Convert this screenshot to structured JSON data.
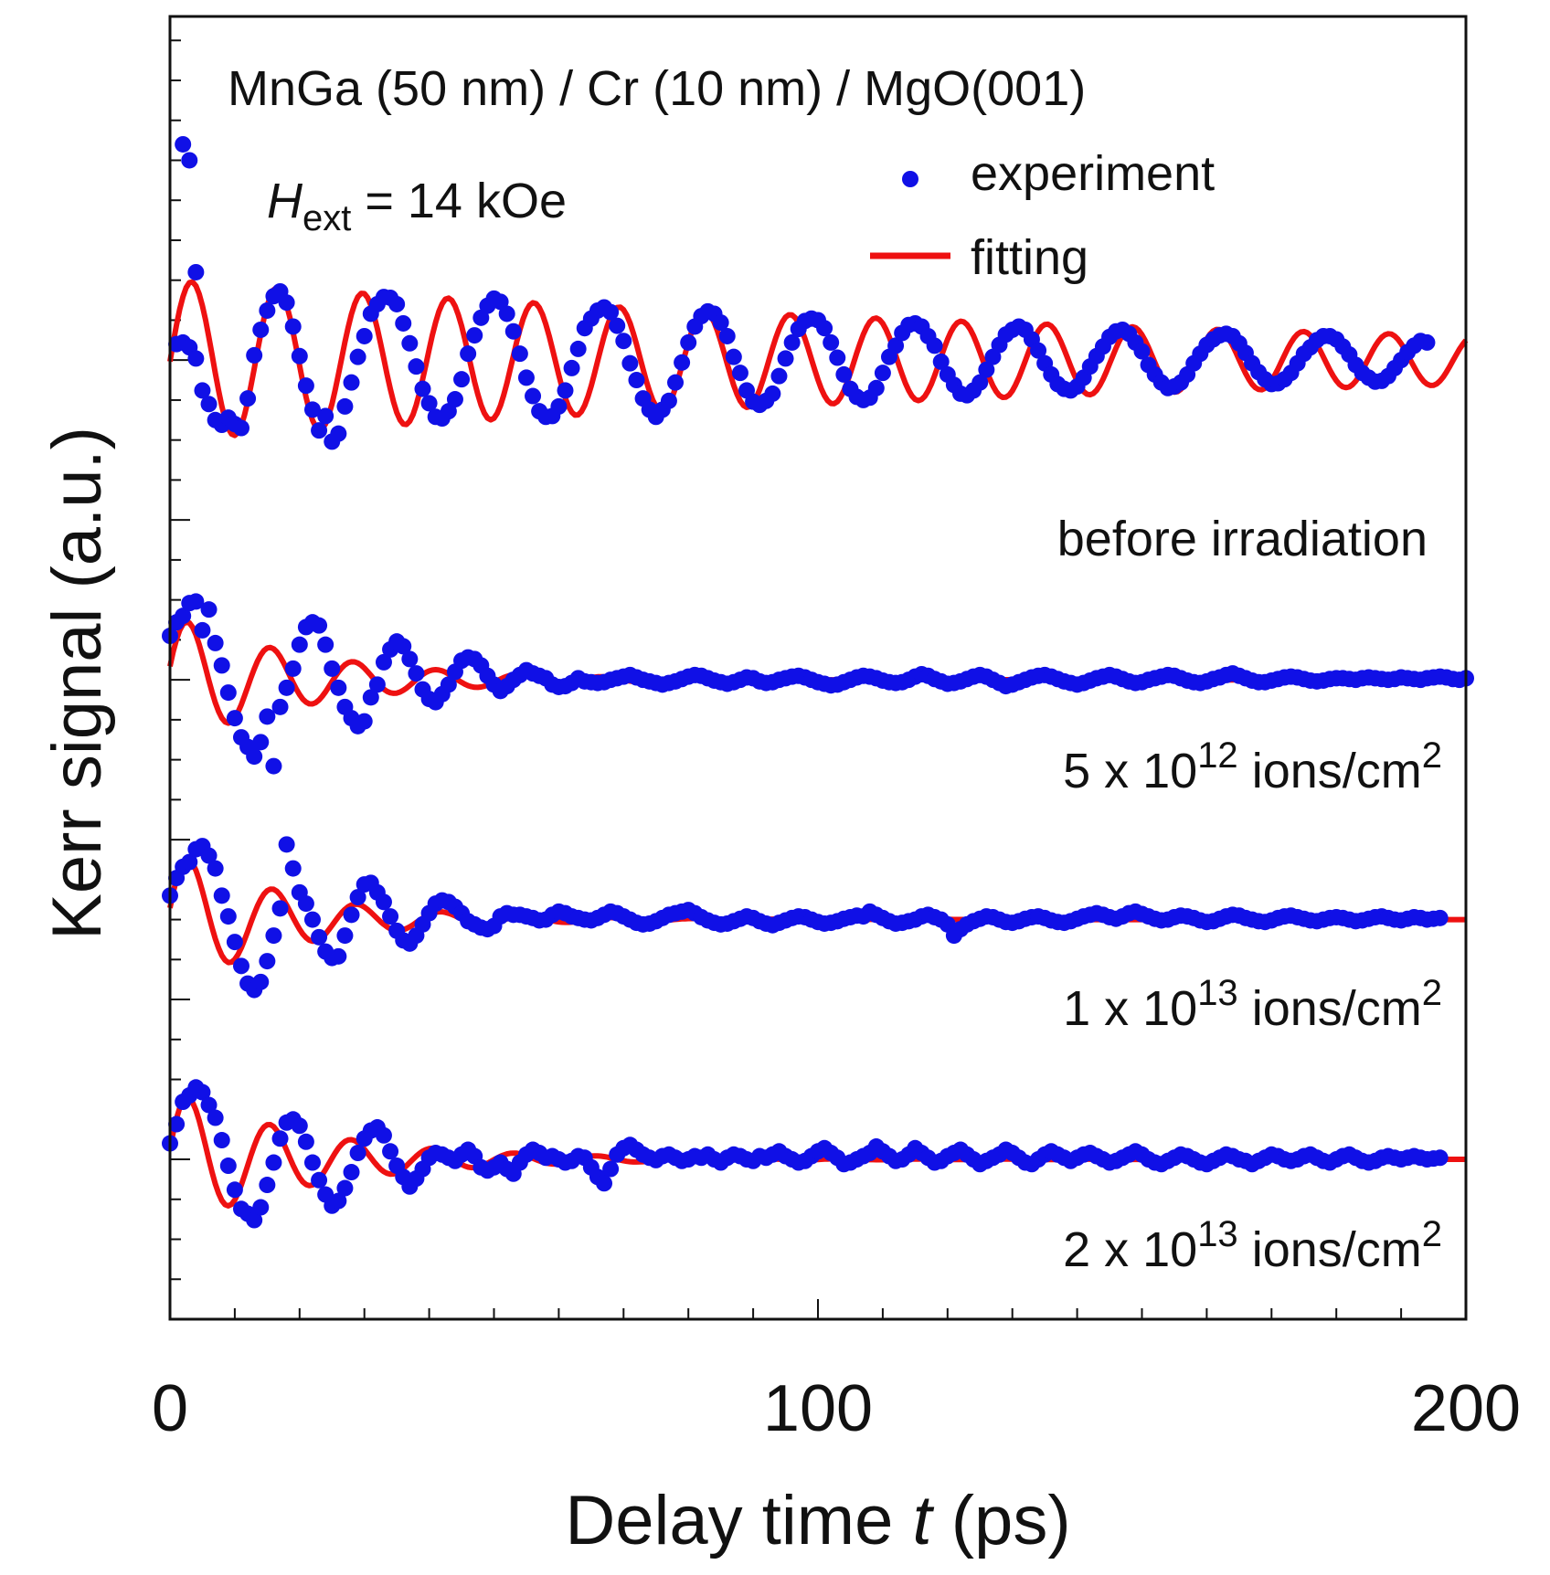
{
  "chart_data": {
    "type": "scatter",
    "title": "MnGa (50 nm) / Cr (10 nm) / MgO(001)",
    "field_label": {
      "symbol": "H",
      "subscript": "ext",
      "value": " = 14 kOe"
    },
    "xlabel": {
      "prefix": "Delay time ",
      "var": "t",
      "suffix": " (ps)"
    },
    "ylabel": "Kerr signal (a.u.)",
    "xlim": [
      0,
      200
    ],
    "ylim": [
      -2.0,
      14.3
    ],
    "x_ticks": [
      0,
      100,
      200
    ],
    "x_tick_labels": [
      "0",
      "100",
      "200"
    ],
    "x_minor_step": 10,
    "y_major_ticks": [
      0,
      2,
      4,
      6,
      8,
      10
    ],
    "y_minor_step": 0.5,
    "legend": {
      "position": "top-right",
      "entries": [
        {
          "label": "experiment",
          "marker": "dot",
          "color": "#1010e6"
        },
        {
          "label": "fitting",
          "marker": "line",
          "color": "#ee1111"
        }
      ]
    },
    "series": [
      {
        "name": "before irradiation",
        "label_text": "before irradiation",
        "offset": 10,
        "amplitude": 1.0,
        "tau": 170,
        "period": 13.2,
        "phase_shift": 1.3,
        "fit_start": 0,
        "x_start": 1,
        "first_points": [
          [
            2,
            12.7
          ],
          [
            3,
            12.5
          ],
          [
            4,
            11.1
          ]
        ],
        "values": [
          0.2,
          0.22,
          0.16,
          0.02,
          -0.38,
          -0.55,
          -0.75,
          -0.81,
          -0.72,
          -0.8,
          -0.85,
          -0.48,
          0.06,
          0.38,
          0.62,
          0.8,
          0.86,
          0.72,
          0.42,
          0.05,
          -0.32,
          -0.62,
          -0.88,
          -0.7,
          -1.02,
          -0.92,
          -0.58,
          -0.28,
          0.04,
          0.3,
          0.58,
          0.7,
          0.79,
          0.78,
          0.7,
          0.46,
          0.21,
          -0.08,
          -0.36,
          -0.54,
          -0.71,
          -0.73,
          -0.64,
          -0.49,
          -0.24,
          0.08,
          0.31,
          0.53,
          0.68,
          0.77,
          0.73,
          0.58,
          0.36,
          0.08,
          -0.22,
          -0.45,
          -0.64,
          -0.71,
          -0.7,
          -0.58,
          -0.38,
          -0.1,
          0.14,
          0.4,
          0.52,
          0.62,
          0.66,
          0.6,
          0.43,
          0.24,
          -0.04,
          -0.25,
          -0.48,
          -0.62,
          -0.71,
          -0.62,
          -0.51,
          -0.28,
          -0.03,
          0.22,
          0.42,
          0.55,
          0.61,
          0.58,
          0.47,
          0.3,
          0.04,
          -0.16,
          -0.38,
          -0.52,
          -0.56,
          -0.51,
          -0.42,
          -0.2,
          0.02,
          0.22,
          0.39,
          0.49,
          0.52,
          0.5,
          0.4,
          0.22,
          0.03,
          -0.18,
          -0.36,
          -0.46,
          -0.5,
          -0.47,
          -0.35,
          -0.16,
          0.04,
          0.18,
          0.34,
          0.44,
          0.46,
          0.42,
          0.3,
          0.18,
          -0.02,
          -0.18,
          -0.31,
          -0.42,
          -0.44,
          -0.38,
          -0.28,
          -0.12,
          0.04,
          0.19,
          0.32,
          0.38,
          0.42,
          0.38,
          0.26,
          0.12,
          -0.04,
          -0.18,
          -0.3,
          -0.36,
          -0.38,
          -0.33,
          -0.22,
          -0.08,
          0.05,
          0.17,
          0.29,
          0.36,
          0.38,
          0.33,
          0.22,
          0.11,
          -0.06,
          -0.18,
          -0.28,
          -0.35,
          -0.33,
          -0.28,
          -0.18,
          -0.04,
          0.08,
          0.19,
          0.26,
          0.31,
          0.33,
          0.3,
          0.21,
          0.09,
          -0.04,
          -0.15,
          -0.24,
          -0.3,
          -0.29,
          -0.24,
          -0.16,
          -0.04,
          0.08,
          0.16,
          0.25,
          0.3,
          0.3,
          0.26,
          0.17,
          0.07,
          -0.06,
          -0.16,
          -0.22,
          -0.27,
          -0.26,
          -0.2,
          -0.1,
          0.0,
          0.1,
          0.18,
          0.24,
          0.22
        ]
      },
      {
        "name": "5 x 10^12 ions/cm^2",
        "label_parts": {
          "pre": "5 x 10",
          "exp": "12",
          "unit": " ions/cm",
          "unit_exp": "2"
        },
        "offset": 6,
        "amplitude": 0.82,
        "tau": 22,
        "period": 12.8,
        "phase_shift": 0.8,
        "fit_start": 0,
        "x_start": 0,
        "first_points": [],
        "values": [
          0.55,
          0.72,
          0.8,
          0.96,
          0.98,
          0.62,
          0.88,
          0.46,
          0.18,
          -0.16,
          -0.48,
          -0.72,
          -0.84,
          -0.96,
          -0.78,
          -0.46,
          -1.08,
          -0.34,
          -0.1,
          0.14,
          0.44,
          0.66,
          0.72,
          0.68,
          0.44,
          0.14,
          -0.1,
          -0.34,
          -0.48,
          -0.58,
          -0.52,
          -0.22,
          -0.06,
          0.22,
          0.38,
          0.48,
          0.42,
          0.26,
          0.08,
          -0.12,
          -0.24,
          -0.28,
          -0.18,
          -0.06,
          0.1,
          0.24,
          0.28,
          0.26,
          0.18,
          0.05,
          -0.06,
          -0.14,
          -0.08,
          0.0,
          0.06,
          0.12,
          0.08,
          0.05,
          0.02,
          -0.06,
          -0.09,
          -0.08,
          -0.04,
          0.02,
          -0.02,
          -0.03,
          -0.04,
          -0.03,
          0.0,
          0.02,
          0.04,
          0.06,
          0.03,
          0.0,
          -0.02,
          -0.04,
          -0.06,
          -0.04,
          -0.02,
          0.01,
          0.04,
          0.06,
          0.05,
          0.02,
          -0.01,
          -0.03,
          -0.05,
          -0.03,
          0.0,
          0.03,
          0.02,
          -0.02,
          -0.04,
          -0.03,
          0.0,
          0.02,
          0.04,
          0.05,
          0.03,
          0.0,
          -0.03,
          -0.05,
          -0.07,
          -0.06,
          -0.03,
          0.0,
          0.03,
          0.05,
          0.04,
          0.02,
          -0.01,
          -0.03,
          -0.04,
          -0.03,
          0.0,
          0.04,
          0.07,
          0.05,
          0.01,
          -0.02,
          -0.05,
          -0.04,
          -0.02,
          0.01,
          0.04,
          0.06,
          0.04,
          0.0,
          -0.04,
          -0.08,
          -0.06,
          -0.03,
          0.0,
          0.03,
          0.05,
          0.06,
          0.04,
          0.01,
          -0.02,
          -0.04,
          -0.06,
          -0.04,
          -0.01,
          0.02,
          0.04,
          0.06,
          0.04,
          0.01,
          -0.02,
          -0.04,
          -0.03,
          0.0,
          0.02,
          0.04,
          0.06,
          0.05,
          0.02,
          -0.01,
          -0.03,
          -0.04,
          -0.02,
          0.01,
          0.03,
          0.06,
          0.08,
          0.05,
          0.02,
          -0.01,
          -0.03,
          -0.03,
          -0.01,
          0.01,
          0.03,
          0.04,
          0.03,
          0.01,
          -0.01,
          -0.02,
          -0.01,
          0.01,
          0.02,
          0.02,
          0.01,
          0.0,
          0.02,
          0.03,
          0.02,
          0.01,
          0.0,
          0.01,
          0.03,
          0.02,
          0.01,
          0.0,
          0.02,
          0.03,
          0.04,
          0.03,
          0.01,
          0.0,
          0.02,
          0.03
        ]
      },
      {
        "name": "1 x 10^13 ions/cm^2",
        "label_parts": {
          "pre": "1 x 10",
          "exp": "13",
          "unit": " ions/cm",
          "unit_exp": "2"
        },
        "offset": 3,
        "amplitude": 0.88,
        "tau": 19,
        "period": 13.0,
        "phase_shift": 0.9,
        "fit_start": 0,
        "x_start": 0,
        "first_points": [],
        "values": [
          0.3,
          0.52,
          0.66,
          0.72,
          0.88,
          0.92,
          0.8,
          0.64,
          0.3,
          0.04,
          -0.28,
          -0.58,
          -0.8,
          -0.88,
          -0.78,
          -0.52,
          -0.2,
          0.14,
          0.94,
          0.64,
          0.34,
          0.2,
          0.0,
          -0.22,
          -0.4,
          -0.48,
          -0.46,
          -0.2,
          0.06,
          0.28,
          0.44,
          0.46,
          0.34,
          0.22,
          0.04,
          -0.14,
          -0.26,
          -0.3,
          -0.2,
          -0.06,
          0.08,
          0.2,
          0.24,
          0.22,
          0.16,
          0.08,
          -0.02,
          -0.06,
          -0.1,
          -0.12,
          -0.08,
          0.04,
          0.08,
          0.06,
          0.06,
          0.04,
          0.02,
          -0.01,
          0.0,
          0.06,
          0.1,
          0.08,
          0.04,
          0.02,
          0.0,
          -0.01,
          0.02,
          0.06,
          0.1,
          0.08,
          0.04,
          0.0,
          -0.04,
          -0.06,
          -0.05,
          -0.02,
          0.02,
          0.06,
          0.08,
          0.1,
          0.12,
          0.08,
          0.03,
          -0.01,
          -0.04,
          -0.06,
          -0.05,
          -0.02,
          0.01,
          0.04,
          0.02,
          -0.02,
          -0.05,
          -0.07,
          -0.04,
          -0.01,
          0.02,
          0.04,
          0.03,
          0.0,
          -0.03,
          -0.05,
          -0.04,
          -0.02,
          0.01,
          0.03,
          0.05,
          0.04,
          0.1,
          0.06,
          0.02,
          -0.02,
          -0.05,
          -0.04,
          -0.02,
          0.0,
          0.04,
          0.06,
          0.03,
          0.0,
          -0.06,
          -0.2,
          -0.12,
          -0.06,
          -0.02,
          0.01,
          0.04,
          0.03,
          0.0,
          -0.03,
          -0.04,
          -0.02,
          0.01,
          0.03,
          0.04,
          0.02,
          -0.01,
          -0.03,
          -0.04,
          -0.02,
          0.01,
          0.04,
          0.06,
          0.08,
          0.06,
          0.03,
          0.01,
          0.04,
          0.08,
          0.1,
          0.07,
          0.04,
          0.01,
          -0.01,
          0.0,
          0.03,
          0.05,
          0.04,
          0.02,
          -0.01,
          -0.03,
          -0.02,
          0.01,
          0.04,
          0.06,
          0.05,
          0.02,
          0.0,
          -0.02,
          -0.03,
          -0.01,
          0.02,
          0.04,
          0.05,
          0.03,
          0.01,
          -0.01,
          -0.02,
          0.0,
          0.02,
          0.03,
          0.02,
          0.0,
          -0.02,
          -0.01,
          0.01,
          0.03,
          0.04,
          0.02,
          0.0,
          -0.01,
          0.01,
          0.03,
          0.02,
          0.0,
          0.01,
          0.02
        ]
      },
      {
        "name": "2 x 10^13 ions/cm^2",
        "label_parts": {
          "pre": "2 x 10",
          "exp": "13",
          "unit": " ions/cm",
          "unit_exp": "2"
        },
        "offset": 0,
        "amplitude": 0.88,
        "tau": 22,
        "period": 12.6,
        "phase_shift": 0.9,
        "fit_start": 0,
        "x_start": 0,
        "first_points": [],
        "values": [
          0.2,
          0.44,
          0.72,
          0.8,
          0.9,
          0.84,
          0.68,
          0.52,
          0.24,
          -0.08,
          -0.38,
          -0.62,
          -0.68,
          -0.76,
          -0.6,
          -0.32,
          -0.04,
          0.26,
          0.46,
          0.5,
          0.42,
          0.22,
          -0.04,
          -0.26,
          -0.44,
          -0.58,
          -0.52,
          -0.36,
          -0.16,
          0.08,
          0.26,
          0.36,
          0.4,
          0.3,
          0.1,
          -0.08,
          -0.22,
          -0.34,
          -0.24,
          -0.12,
          0.02,
          0.08,
          0.06,
          0.02,
          -0.02,
          0.06,
          0.12,
          0.04,
          -0.1,
          -0.14,
          -0.1,
          -0.04,
          -0.12,
          -0.18,
          -0.04,
          0.06,
          0.12,
          0.08,
          0.02,
          0.04,
          0.0,
          -0.04,
          -0.02,
          0.04,
          0.02,
          -0.1,
          -0.22,
          -0.3,
          -0.12,
          0.06,
          0.14,
          0.18,
          0.12,
          0.06,
          0.02,
          -0.01,
          0.04,
          0.06,
          0.02,
          -0.02,
          0.0,
          0.04,
          0.02,
          0.06,
          0.0,
          -0.04,
          0.02,
          0.06,
          0.04,
          0.0,
          -0.02,
          0.04,
          0.02,
          0.06,
          0.1,
          0.04,
          0.0,
          -0.04,
          -0.02,
          0.04,
          0.1,
          0.14,
          0.08,
          0.02,
          -0.06,
          -0.04,
          0.0,
          0.04,
          0.08,
          0.16,
          0.1,
          0.04,
          -0.02,
          0.0,
          0.06,
          0.14,
          0.08,
          0.02,
          -0.04,
          -0.02,
          0.04,
          0.08,
          0.12,
          0.06,
          0.0,
          -0.06,
          -0.02,
          0.02,
          0.06,
          0.12,
          0.08,
          0.02,
          -0.04,
          -0.06,
          0.0,
          0.06,
          0.1,
          0.06,
          0.02,
          -0.02,
          0.02,
          0.06,
          0.08,
          0.04,
          0.0,
          -0.04,
          -0.02,
          0.02,
          0.06,
          0.1,
          0.06,
          0.0,
          -0.04,
          -0.06,
          -0.02,
          0.02,
          0.06,
          0.04,
          0.0,
          -0.04,
          -0.06,
          -0.02,
          0.02,
          0.06,
          0.04,
          0.0,
          -0.02,
          -0.06,
          -0.02,
          0.02,
          0.06,
          0.04,
          0.0,
          -0.02,
          0.0,
          0.04,
          0.06,
          0.02,
          -0.02,
          -0.04,
          0.0,
          0.04,
          0.06,
          0.02,
          -0.02,
          -0.04,
          -0.02,
          0.02,
          0.04,
          0.02,
          0.0,
          0.02,
          0.04,
          0.02,
          0.0,
          0.01,
          0.02
        ]
      }
    ]
  }
}
